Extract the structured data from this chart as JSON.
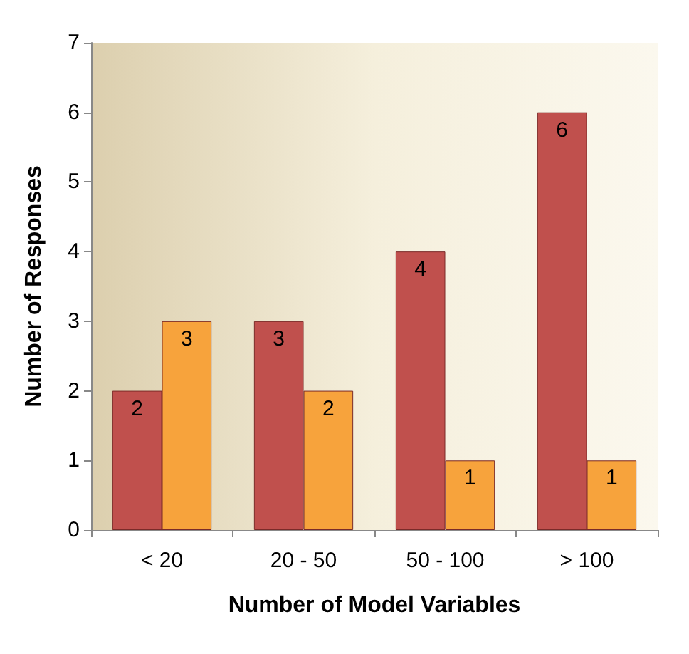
{
  "chart_data": {
    "type": "bar",
    "xlabel": "Number of Model Variables",
    "ylabel": "Number of Responses",
    "categories": [
      "< 20",
      "20 - 50",
      "50 - 100",
      "> 100"
    ],
    "series": [
      {
        "color": "#c0504d",
        "values": [
          2,
          3,
          4,
          6
        ]
      },
      {
        "color": "#f7a33c",
        "values": [
          3,
          2,
          1,
          1
        ]
      }
    ],
    "ylim": [
      0,
      7
    ],
    "yticks": [
      0,
      1,
      2,
      3,
      4,
      5,
      6,
      7
    ],
    "grid": false,
    "data_labels": true
  }
}
